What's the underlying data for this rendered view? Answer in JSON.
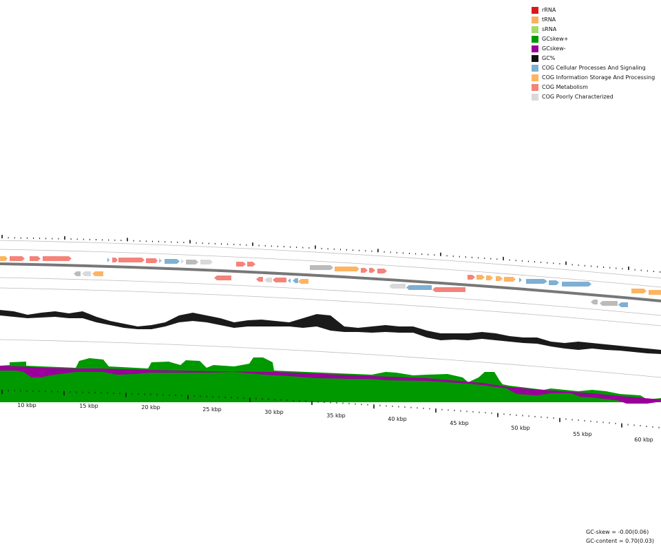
{
  "legend": {
    "items": [
      {
        "label": "rRNA",
        "color": "#d7191c"
      },
      {
        "label": "tRNA",
        "color": "#fdae61"
      },
      {
        "label": "sRNA",
        "color": "#a6d96a"
      },
      {
        "label": "GCskew+",
        "color": "#009900"
      },
      {
        "label": "GCskew-",
        "color": "#990099"
      },
      {
        "label": "GC%",
        "color": "#111111"
      },
      {
        "label": "COG Cellular Processes And Signaling",
        "color": "#7fb0d3"
      },
      {
        "label": "COG Information Storage And Processing",
        "color": "#fdb462"
      },
      {
        "label": "COG Metabolism",
        "color": "#f4837a"
      },
      {
        "label": "COG Poorly Characterized",
        "color": "#d9d9d9"
      }
    ]
  },
  "axis": {
    "ticks": [
      "10 kbp",
      "15 kbp",
      "20 kbp",
      "25 kbp",
      "30 kbp",
      "35 kbp",
      "40 kbp",
      "45 kbp",
      "50 kbp",
      "55 kbp",
      "60 kbp"
    ]
  },
  "stats": {
    "gc_skew": "GC-skew = -0.00(0.06)",
    "gc_content": "GC-content = 0.70(0.03)"
  }
}
